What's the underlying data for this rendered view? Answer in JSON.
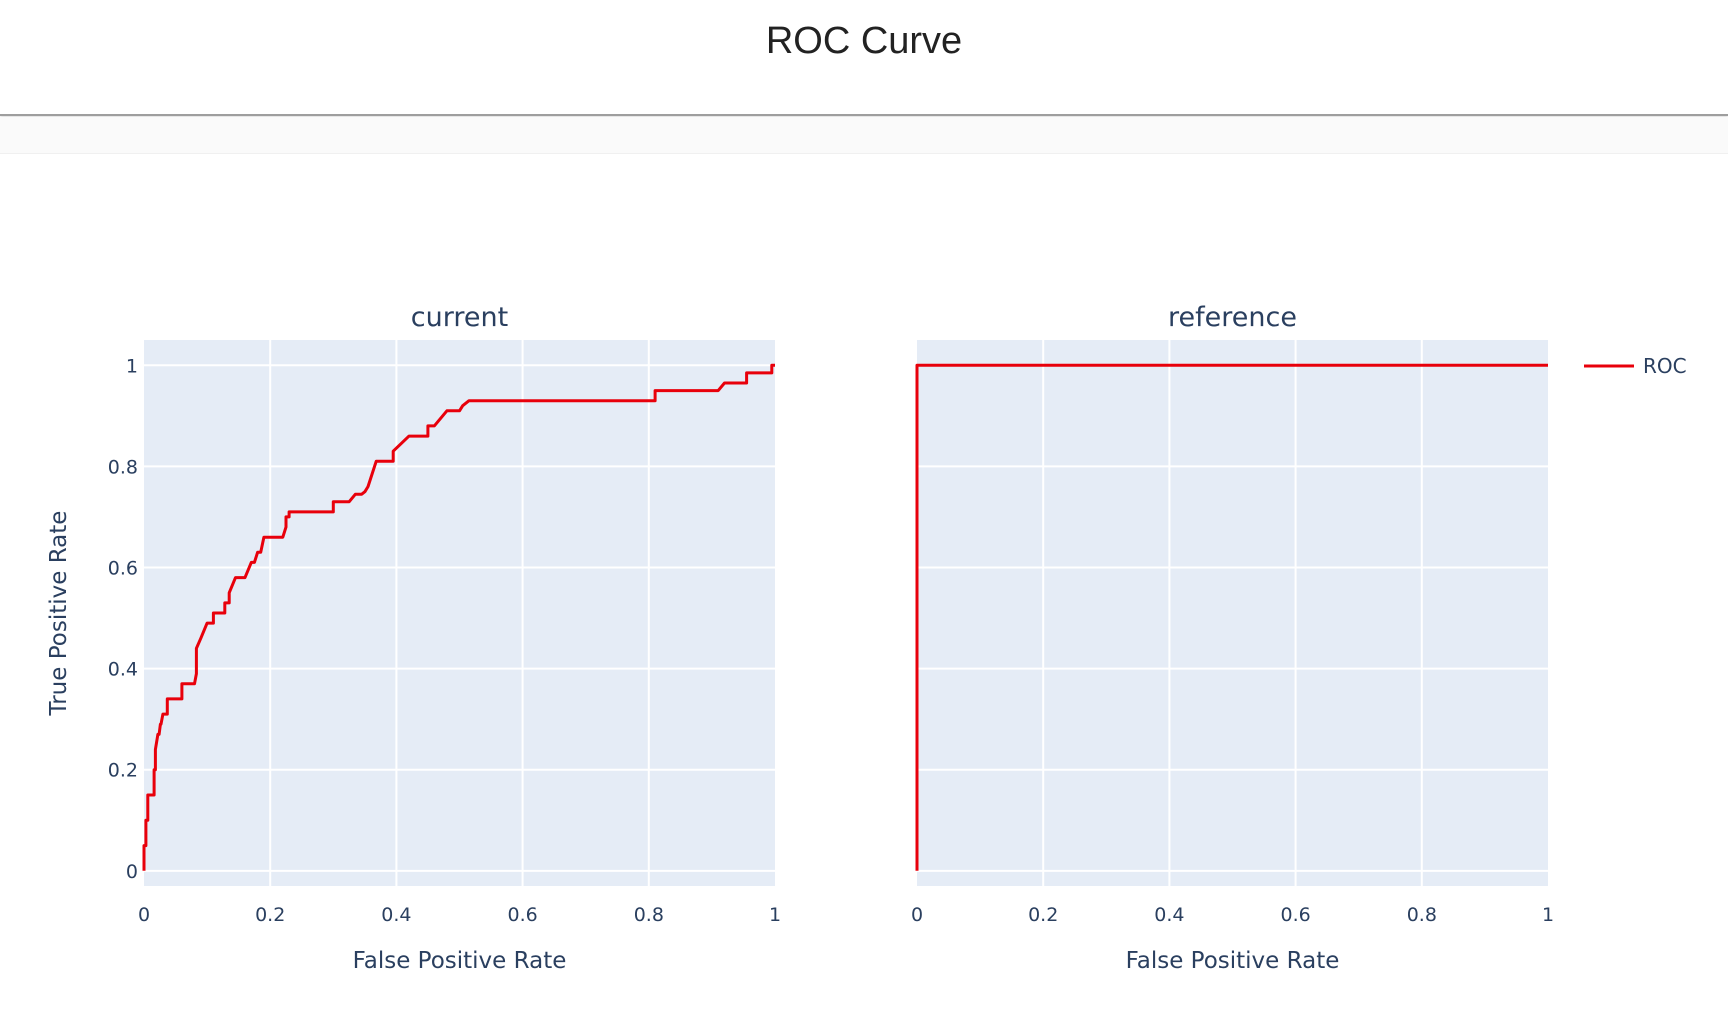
{
  "page": {
    "title": "ROC Curve"
  },
  "colors": {
    "roc": "#e8000b",
    "plot_bg": "#e5ecf6",
    "grid": "#ffffff",
    "text": "#2a3f5f"
  },
  "chart_data": {
    "type": "line",
    "legend": {
      "entries": [
        "ROC"
      ],
      "placement": "top-right"
    },
    "shared_ylabel": "True Positive Rate",
    "subplots": [
      {
        "title": "current",
        "xlabel": "False Positive Rate",
        "xlim": [
          0,
          1
        ],
        "ylim": [
          -0.03,
          1.05
        ],
        "xticks": [
          "0",
          "0.2",
          "0.4",
          "0.6",
          "0.8",
          "1"
        ],
        "yticks": [
          "0",
          "0.2",
          "0.4",
          "0.6",
          "0.8",
          "1"
        ],
        "series": [
          {
            "name": "ROC",
            "x": [
              0,
              0,
              0.003,
              0.003,
              0.006,
              0.006,
              0.016,
              0.016,
              0.018,
              0.018,
              0.022,
              0.024,
              0.026,
              0.027,
              0.03,
              0.032,
              0.037,
              0.037,
              0.04,
              0.04,
              0.06,
              0.06,
              0.08,
              0.083,
              0.083,
              0.09,
              0.1,
              0.104,
              0.11,
              0.11,
              0.128,
              0.128,
              0.135,
              0.135,
              0.145,
              0.15,
              0.16,
              0.17,
              0.175,
              0.18,
              0.185,
              0.19,
              0.19,
              0.22,
              0.225,
              0.225,
              0.23,
              0.23,
              0.3,
              0.3,
              0.325,
              0.335,
              0.345,
              0.35,
              0.355,
              0.368,
              0.395,
              0.395,
              0.42,
              0.45,
              0.45,
              0.46,
              0.48,
              0.5,
              0.505,
              0.515,
              0.81,
              0.81,
              0.91,
              0.92,
              0.955,
              0.955,
              0.995,
              0.995,
              1
            ],
            "y": [
              0,
              0.05,
              0.05,
              0.1,
              0.1,
              0.15,
              0.15,
              0.2,
              0.2,
              0.24,
              0.27,
              0.27,
              0.29,
              0.29,
              0.31,
              0.31,
              0.31,
              0.34,
              0.34,
              0.34,
              0.34,
              0.37,
              0.37,
              0.39,
              0.44,
              0.46,
              0.49,
              0.49,
              0.49,
              0.51,
              0.51,
              0.53,
              0.53,
              0.55,
              0.58,
              0.58,
              0.58,
              0.61,
              0.61,
              0.63,
              0.63,
              0.66,
              0.66,
              0.66,
              0.68,
              0.7,
              0.7,
              0.71,
              0.71,
              0.73,
              0.73,
              0.745,
              0.745,
              0.75,
              0.76,
              0.81,
              0.81,
              0.83,
              0.86,
              0.86,
              0.88,
              0.88,
              0.91,
              0.91,
              0.92,
              0.93,
              0.93,
              0.95,
              0.95,
              0.965,
              0.965,
              0.985,
              0.985,
              1,
              1
            ]
          }
        ]
      },
      {
        "title": "reference",
        "xlabel": "False Positive Rate",
        "xlim": [
          0,
          1
        ],
        "ylim": [
          -0.03,
          1.05
        ],
        "xticks": [
          "0",
          "0.2",
          "0.4",
          "0.6",
          "0.8",
          "1"
        ],
        "yticks": [],
        "series": [
          {
            "name": "ROC",
            "x": [
              0,
              0,
              1
            ],
            "y": [
              0,
              1,
              1
            ]
          }
        ]
      }
    ]
  }
}
